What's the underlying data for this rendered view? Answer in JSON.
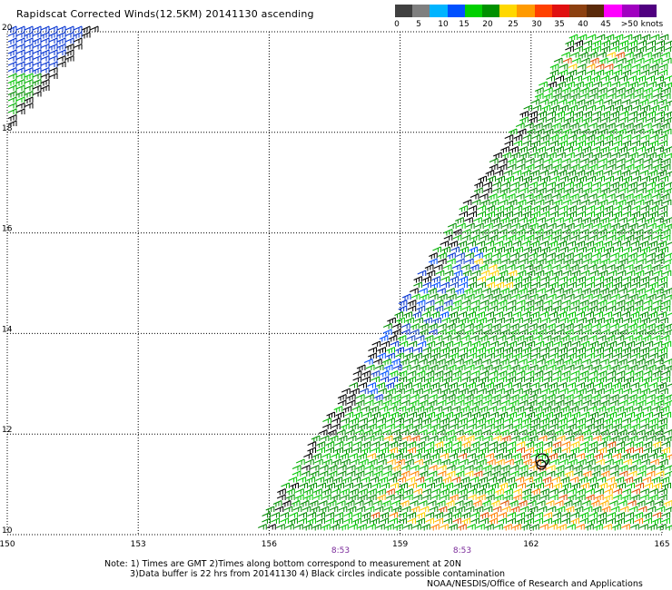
{
  "title": "Rapidscat Corrected Winds(12.5KM) 20141130 ascending",
  "legend": {
    "colors": [
      "#404040",
      "#7f7f7f",
      "#00b4ff",
      "#0050ff",
      "#00d000",
      "#009000",
      "#ffd800",
      "#ff9a00",
      "#ff4000",
      "#e01010",
      "#8c4010",
      "#5a2a0a",
      "#ff00ff",
      "#a000c0",
      "#500080"
    ],
    "labels": [
      "0",
      "5",
      "10",
      "15",
      "20",
      "25",
      "30",
      "35",
      "40",
      "45",
      ">50 knots"
    ]
  },
  "axes": {
    "lon_labels": [
      "150",
      "153",
      "156",
      "159",
      "162",
      "165"
    ],
    "lat_labels": [
      "20",
      "18",
      "16",
      "14",
      "12",
      "10"
    ]
  },
  "time_labels": [
    "8:53",
    "8:53"
  ],
  "chart_data": {
    "type": "scatter",
    "title": "Rapidscat Corrected Winds(12.5KM) 20141130 ascending",
    "x_range": [
      150,
      165
    ],
    "y_range": [
      10,
      20
    ],
    "units": "knots",
    "swath_regions": [
      {
        "lon": [
          150.0,
          151.9
        ],
        "lat": [
          17.9,
          20.0
        ],
        "dominant_speed_knots": "10-15"
      },
      {
        "lon": [
          156.0,
          165.0
        ],
        "lat": [
          10.0,
          20.0
        ],
        "dominant_speed_knots": "15-20"
      }
    ]
  },
  "notes": [
    "Note: 1) Times are GMT 2)Times along bottom correspond to measurement at 20N",
    "3)Data buffer is 22 hrs from 20141130 4) Black circles indicate possible contamination"
  ],
  "credit": "NOAA/NESDIS/Office of Research and Applications"
}
